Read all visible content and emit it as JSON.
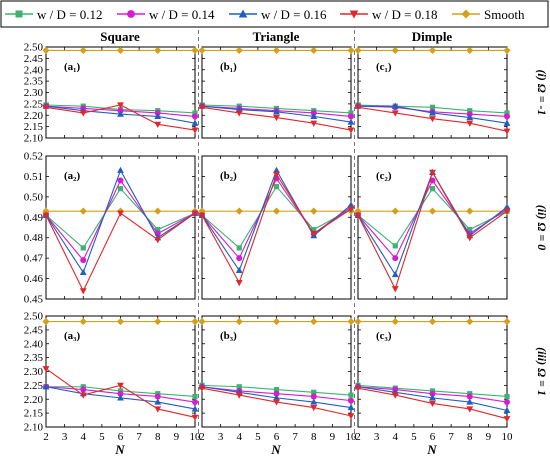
{
  "chart_data": {
    "type": "line",
    "legend": {
      "placement": "top",
      "entries": [
        {
          "label": "w / D = 0.12",
          "color": "#3cb371",
          "marker": "square"
        },
        {
          "label": "w / D = 0.14",
          "color": "#d81bd0",
          "marker": "circle"
        },
        {
          "label": "w / D = 0.16",
          "color": "#1f5fbf",
          "marker": "triangle-up"
        },
        {
          "label": "w / D = 0.18",
          "color": "#e0282c",
          "marker": "triangle-down"
        },
        {
          "label": "Smooth",
          "color": "#d4a017",
          "marker": "diamond"
        }
      ]
    },
    "columns": [
      "Square",
      "Triangle",
      "Dimple"
    ],
    "rows": [
      {
        "label": "(i) Ω = -1",
        "ylim": [
          2.1,
          2.5
        ],
        "yticks": [
          "2.10",
          "2.15",
          "2.20",
          "2.25",
          "2.30",
          "2.35",
          "2.40",
          "2.45",
          "2.50"
        ]
      },
      {
        "label": "(ii) Ω = 0",
        "ylim": [
          0.45,
          0.52
        ],
        "yticks": [
          "0.45",
          "0.46",
          "0.47",
          "0.48",
          "0.49",
          "0.50",
          "0.51",
          "0.52"
        ]
      },
      {
        "label": "(iii) Ω = 1",
        "ylim": [
          2.1,
          2.5
        ],
        "yticks": [
          "2.10",
          "2.15",
          "2.20",
          "2.25",
          "2.30",
          "2.35",
          "2.40",
          "2.45",
          "2.50"
        ]
      }
    ],
    "x": [
      2,
      4,
      6,
      8,
      10
    ],
    "xlim": [
      2,
      10
    ],
    "xticks": [
      "2",
      "3",
      "4",
      "5",
      "6",
      "7",
      "8",
      "9",
      "10"
    ],
    "xlabel": "N",
    "grid": false,
    "panels": [
      {
        "label": "(a₁)",
        "row": 0,
        "col": 0,
        "series": [
          [
            2.245,
            2.24,
            2.225,
            2.22,
            2.21
          ],
          [
            2.24,
            2.23,
            2.22,
            2.21,
            2.195
          ],
          [
            2.24,
            2.22,
            2.205,
            2.195,
            2.165
          ],
          [
            2.235,
            2.21,
            2.245,
            2.16,
            2.135
          ],
          [
            2.485,
            2.485,
            2.485,
            2.485,
            2.485
          ]
        ]
      },
      {
        "label": "(b₁)",
        "row": 0,
        "col": 1,
        "series": [
          [
            2.245,
            2.24,
            2.23,
            2.22,
            2.21
          ],
          [
            2.24,
            2.23,
            2.22,
            2.21,
            2.195
          ],
          [
            2.24,
            2.225,
            2.215,
            2.195,
            2.17
          ],
          [
            2.235,
            2.21,
            2.19,
            2.165,
            2.135
          ],
          [
            2.485,
            2.485,
            2.485,
            2.485,
            2.485
          ]
        ]
      },
      {
        "label": "(c₁)",
        "row": 0,
        "col": 2,
        "series": [
          [
            2.245,
            2.24,
            2.235,
            2.22,
            2.21
          ],
          [
            2.24,
            2.235,
            2.215,
            2.205,
            2.195
          ],
          [
            2.24,
            2.24,
            2.21,
            2.19,
            2.165
          ],
          [
            2.235,
            2.21,
            2.185,
            2.165,
            2.13
          ],
          [
            2.485,
            2.485,
            2.485,
            2.485,
            2.485
          ]
        ]
      },
      {
        "label": "(a₂)",
        "row": 1,
        "col": 0,
        "series": [
          [
            0.491,
            0.475,
            0.504,
            0.484,
            0.492
          ],
          [
            0.491,
            0.469,
            0.508,
            0.482,
            0.492
          ],
          [
            0.491,
            0.463,
            0.513,
            0.48,
            0.492
          ],
          [
            0.491,
            0.454,
            0.492,
            0.479,
            0.492
          ],
          [
            0.493,
            0.493,
            0.493,
            0.493,
            0.493
          ]
        ]
      },
      {
        "label": "(b₂)",
        "row": 1,
        "col": 1,
        "series": [
          [
            0.491,
            0.475,
            0.505,
            0.484,
            0.494
          ],
          [
            0.491,
            0.47,
            0.509,
            0.482,
            0.495
          ],
          [
            0.491,
            0.464,
            0.513,
            0.481,
            0.496
          ],
          [
            0.491,
            0.458,
            0.511,
            0.482,
            0.494
          ],
          [
            0.493,
            0.493,
            0.493,
            0.493,
            0.493
          ]
        ]
      },
      {
        "label": "(c₂)",
        "row": 1,
        "col": 2,
        "series": [
          [
            0.491,
            0.476,
            0.504,
            0.484,
            0.493
          ],
          [
            0.491,
            0.47,
            0.508,
            0.482,
            0.494
          ],
          [
            0.491,
            0.462,
            0.512,
            0.481,
            0.495
          ],
          [
            0.491,
            0.455,
            0.512,
            0.48,
            0.493
          ],
          [
            0.493,
            0.493,
            0.493,
            0.493,
            0.493
          ]
        ]
      },
      {
        "label": "(a₃)",
        "row": 2,
        "col": 0,
        "series": [
          [
            2.245,
            2.245,
            2.23,
            2.22,
            2.21
          ],
          [
            2.245,
            2.235,
            2.22,
            2.21,
            2.19
          ],
          [
            2.245,
            2.22,
            2.205,
            2.19,
            2.165
          ],
          [
            2.31,
            2.215,
            2.25,
            2.165,
            2.135
          ],
          [
            2.48,
            2.48,
            2.48,
            2.48,
            2.48
          ]
        ]
      },
      {
        "label": "(b₃)",
        "row": 2,
        "col": 1,
        "series": [
          [
            2.25,
            2.245,
            2.235,
            2.225,
            2.215
          ],
          [
            2.245,
            2.23,
            2.22,
            2.21,
            2.195
          ],
          [
            2.245,
            2.225,
            2.205,
            2.19,
            2.17
          ],
          [
            2.24,
            2.215,
            2.19,
            2.17,
            2.14
          ],
          [
            2.48,
            2.48,
            2.48,
            2.48,
            2.48
          ]
        ]
      },
      {
        "label": "(c₃)",
        "row": 2,
        "col": 2,
        "series": [
          [
            2.25,
            2.24,
            2.23,
            2.22,
            2.21
          ],
          [
            2.245,
            2.235,
            2.22,
            2.21,
            2.19
          ],
          [
            2.245,
            2.225,
            2.205,
            2.19,
            2.16
          ],
          [
            2.24,
            2.215,
            2.185,
            2.165,
            2.13
          ],
          [
            2.48,
            2.48,
            2.48,
            2.48,
            2.48
          ]
        ]
      }
    ]
  }
}
